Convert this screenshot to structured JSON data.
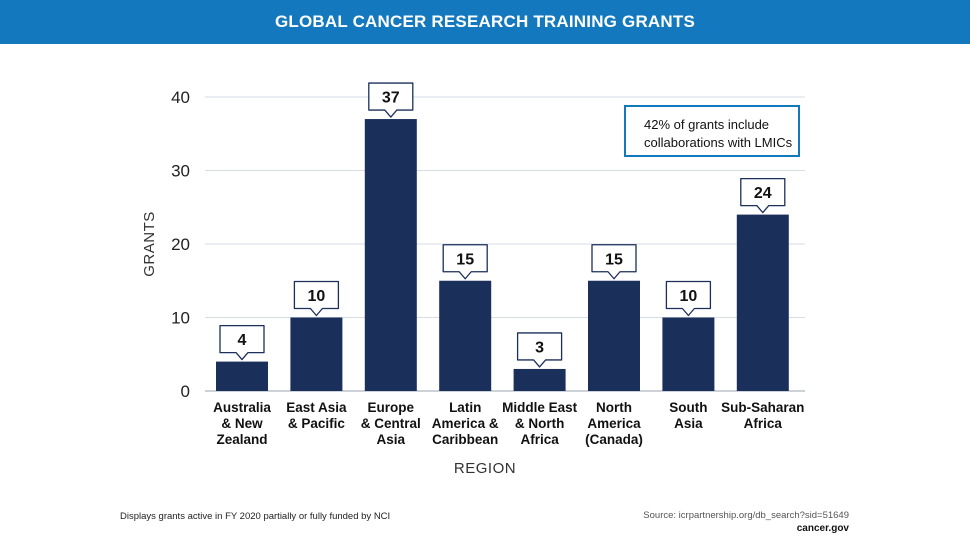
{
  "header": {
    "title": "GLOBAL CANCER RESEARCH TRAINING GRANTS"
  },
  "callout": {
    "text": "42% of grants include collaborations with LMICs"
  },
  "footnote": "Displays grants active in FY 2020 partially or fully funded by NCI",
  "source": "Source: icrpartnership.org/db_search?sid=51649",
  "brand": "cancer.gov",
  "colors": {
    "header": "#1378bd",
    "bar": "#1b2f5b",
    "grid": "#d5dde5",
    "callout_border": "#1378bd"
  },
  "chart_data": {
    "type": "bar",
    "title": "GLOBAL CANCER RESEARCH TRAINING GRANTS",
    "xlabel": "REGION",
    "ylabel": "GRANTS",
    "ylim": [
      0,
      40
    ],
    "yticks": [
      0,
      10,
      20,
      30,
      40
    ],
    "grid": true,
    "categories": [
      [
        "Australia",
        "& New",
        "Zealand"
      ],
      [
        "East Asia",
        "& Pacific"
      ],
      [
        "Europe",
        "& Central",
        "Asia"
      ],
      [
        "Latin",
        "America &",
        "Caribbean"
      ],
      [
        "Middle East",
        "& North",
        "Africa"
      ],
      [
        "North",
        "America",
        "(Canada)"
      ],
      [
        "South",
        "Asia"
      ],
      [
        "Sub-Saharan",
        "Africa"
      ]
    ],
    "values": [
      4,
      10,
      37,
      15,
      3,
      15,
      10,
      24
    ]
  }
}
